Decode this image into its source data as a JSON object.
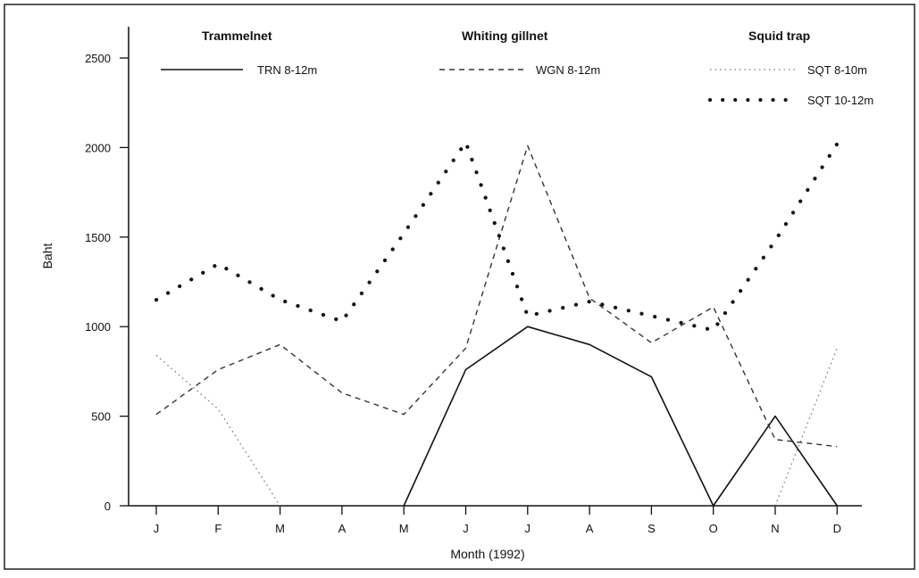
{
  "chart_data": {
    "type": "line",
    "title": "",
    "xlabel": "Month (1992)",
    "ylabel": "Baht",
    "categories": [
      "J",
      "F",
      "M",
      "A",
      "M",
      "J",
      "J",
      "A",
      "S",
      "O",
      "N",
      "D"
    ],
    "ylim": [
      0,
      2500
    ],
    "yticks": [
      0,
      500,
      1000,
      1500,
      2000,
      2500
    ],
    "grid": false,
    "legend_groups": [
      {
        "title": "Trammelnet",
        "entries": [
          "TRN 8-12m"
        ]
      },
      {
        "title": "Whiting gillnet",
        "entries": [
          "WGN 8-12m"
        ]
      },
      {
        "title": "Squid trap",
        "entries": [
          "SQT 8-10m",
          "SQT 10-12m"
        ]
      }
    ],
    "series": [
      {
        "name": "TRN 8-12m",
        "style": "solid",
        "x": [
          4,
          5,
          6,
          7,
          8,
          9,
          10,
          11
        ],
        "values": [
          0,
          760,
          1000,
          900,
          720,
          0,
          500,
          0
        ]
      },
      {
        "name": "WGN 8-12m",
        "style": "dashed",
        "x": [
          0,
          1,
          2,
          3,
          4,
          5,
          6,
          7,
          8,
          9,
          10,
          11
        ],
        "values": [
          510,
          760,
          900,
          630,
          510,
          880,
          2010,
          1160,
          910,
          1110,
          370,
          330
        ]
      },
      {
        "name": "SQT 8-10m",
        "style": "fine-dotted",
        "x": [
          0,
          1,
          2,
          10,
          11
        ],
        "values": [
          840,
          540,
          0,
          0,
          880
        ]
      },
      {
        "name": "SQT 10-12m",
        "style": "heavy-dotted",
        "x": [
          0,
          1,
          2,
          3,
          4,
          5,
          6,
          7,
          8,
          9,
          10,
          11
        ],
        "values": [
          1150,
          1350,
          1150,
          1030,
          1520,
          2030,
          1060,
          1140,
          1060,
          980,
          1480,
          2020
        ]
      }
    ]
  }
}
